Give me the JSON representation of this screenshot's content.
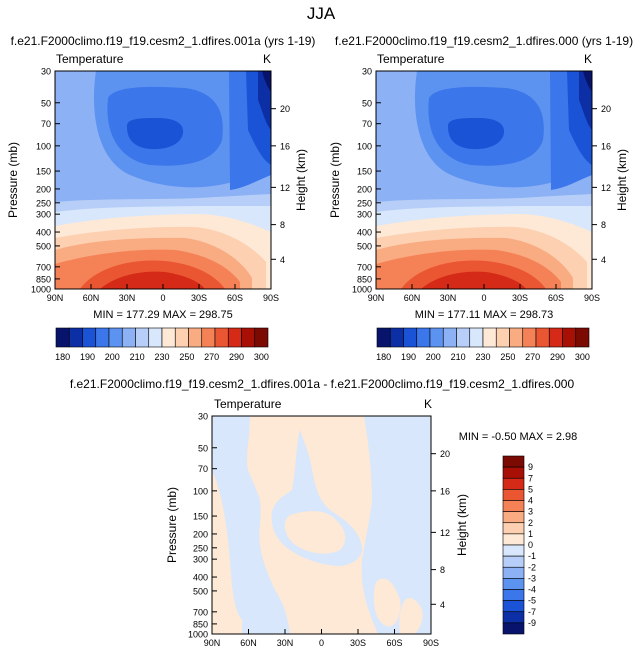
{
  "figure": {
    "title": "JJA"
  },
  "colors": {
    "temp_scale": [
      "#08146b",
      "#0d2fa6",
      "#1b53d6",
      "#3b76ea",
      "#5d93f0",
      "#8cb1f5",
      "#b7cff8",
      "#d8e7fb",
      "#fde9d6",
      "#fcd0b0",
      "#f9ab82",
      "#f58257",
      "#ea5632",
      "#d42a17",
      "#a81006",
      "#7a0a02"
    ],
    "diff_scale": [
      "#08146b",
      "#0d2fa6",
      "#1b53d6",
      "#3b76ea",
      "#5d93f0",
      "#8cb1f5",
      "#b7cff8",
      "#d8e7fb",
      "#fde9d6",
      "#fcd0b0",
      "#f9ab82",
      "#f58257",
      "#ea5632",
      "#d42a17",
      "#a81006",
      "#7a0a02"
    ]
  },
  "chart_data": [
    {
      "type": "heatmap",
      "title": "f.e21.F2000climo.f19_f19.cesm2_1.dfires.001a (yrs 1-19)",
      "left_label": "Temperature",
      "units": "K",
      "ylabel": "Pressure (mb)",
      "right_label": "Height (km)",
      "x_ticks": [
        "90N",
        "60N",
        "30N",
        "0",
        "30S",
        "60S",
        "90S"
      ],
      "y_ticks": [
        "30",
        "50",
        "70",
        "100",
        "150",
        "200",
        "250",
        "300",
        "400",
        "500",
        "700",
        "850",
        "1000"
      ],
      "height_ticks": [
        "20",
        "16",
        "12",
        "8",
        "4"
      ],
      "min_max": "MIN = 177.29   MAX = 298.75",
      "colorbar_labels": [
        "180",
        "190",
        "200",
        "210",
        "230",
        "250",
        "270",
        "290",
        "300"
      ],
      "ylim": [
        1000,
        30
      ]
    },
    {
      "type": "heatmap",
      "title": "f.e21.F2000climo.f19_f19.cesm2_1.dfires.000 (yrs 1-19)",
      "left_label": "Temperature",
      "units": "K",
      "ylabel": "Pressure (mb)",
      "right_label": "Height (km)",
      "x_ticks": [
        "90N",
        "60N",
        "30N",
        "0",
        "30S",
        "60S",
        "90S"
      ],
      "y_ticks": [
        "30",
        "50",
        "70",
        "100",
        "150",
        "200",
        "250",
        "300",
        "400",
        "500",
        "700",
        "850",
        "1000"
      ],
      "height_ticks": [
        "20",
        "16",
        "12",
        "8",
        "4"
      ],
      "min_max": "MIN = 177.11   MAX = 298.73",
      "colorbar_labels": [
        "180",
        "190",
        "200",
        "210",
        "230",
        "250",
        "270",
        "290",
        "300"
      ],
      "ylim": [
        1000,
        30
      ]
    },
    {
      "type": "heatmap",
      "title": "f.e21.F2000climo.f19_f19.cesm2_1.dfires.001a - f.e21.F2000climo.f19_f19.cesm2_1.dfires.000",
      "left_label": "Temperature",
      "units": "K",
      "ylabel": "Pressure (mb)",
      "right_label": "Height (km)",
      "x_ticks": [
        "90N",
        "60N",
        "30N",
        "0",
        "30S",
        "60S",
        "90S"
      ],
      "y_ticks": [
        "30",
        "50",
        "70",
        "100",
        "150",
        "200",
        "250",
        "300",
        "400",
        "500",
        "700",
        "850",
        "1000"
      ],
      "height_ticks": [
        "20",
        "16",
        "12",
        "8",
        "4"
      ],
      "min_max": "MIN = -0.50   MAX =   2.98",
      "colorbar_labels": [
        "9",
        "7",
        "5",
        "4",
        "3",
        "2",
        "1",
        "0",
        "-1",
        "-2",
        "-3",
        "-4",
        "-5",
        "-7",
        "-9"
      ],
      "ylim": [
        1000,
        30
      ]
    }
  ]
}
